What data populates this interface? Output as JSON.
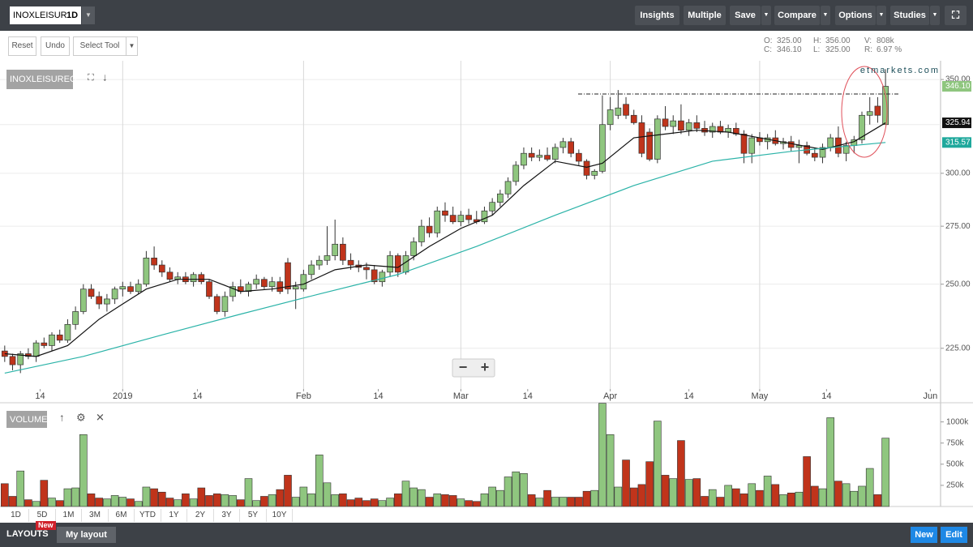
{
  "toolbar": {
    "symbol": "INOXLEISURE",
    "interval": "1D",
    "buttons": [
      "Insights",
      "Multiple",
      "Save",
      "Compare",
      "Options",
      "Studies"
    ]
  },
  "tools": [
    "Reset",
    "Undo",
    "Select Tool"
  ],
  "quote": [
    [
      "O:",
      "325.00"
    ],
    [
      "H:",
      "356.00"
    ],
    [
      "V:",
      "808k"
    ],
    [
      "C:",
      "346.10"
    ],
    [
      "L:",
      "325.00"
    ],
    [
      "R:",
      "6.97 %"
    ]
  ],
  "watermark": "etmarkets.com",
  "chart_data": {
    "type": "candlestick",
    "legend": "INOXLEISUREQ",
    "log": true,
    "grid": true,
    "up_color": "#8fc67f",
    "down_color": "#c0341b",
    "xlim": [
      -0.6,
      119
    ],
    "xticks": [
      {
        "value": 4.5,
        "label": "14"
      },
      {
        "value": 15,
        "label": "2019"
      },
      {
        "value": 24.5,
        "label": "14"
      },
      {
        "value": 38,
        "label": "Feb"
      },
      {
        "value": 47.5,
        "label": "14"
      },
      {
        "value": 58,
        "label": "Mar"
      },
      {
        "value": 66.5,
        "label": "14"
      },
      {
        "value": 77,
        "label": "Apr"
      },
      {
        "value": 87,
        "label": "14"
      },
      {
        "value": 96,
        "label": "May"
      },
      {
        "value": 104.5,
        "label": "14"
      },
      {
        "value": 117.7,
        "label": "Jun"
      }
    ],
    "xgrid": [
      15,
      38,
      58,
      77,
      96
    ],
    "ylim": [
      211,
      359.5
    ],
    "yticks": [
      {
        "value": 225,
        "label": "225.00"
      },
      {
        "value": 250,
        "label": "250.00"
      },
      {
        "value": 275,
        "label": "275.00"
      },
      {
        "value": 300,
        "label": "300.00"
      },
      {
        "value": 350,
        "label": "350.00"
      }
    ],
    "ygrid": [
      225,
      250,
      275,
      300,
      325,
      350
    ],
    "open": [
      224,
      222,
      219,
      223,
      222,
      227,
      226,
      230,
      228,
      234,
      239,
      248,
      245,
      242,
      244,
      248,
      249,
      247,
      250,
      261,
      258,
      255,
      252,
      253,
      251,
      254,
      251,
      245,
      239,
      245,
      249,
      247,
      250,
      252,
      249,
      251,
      259,
      248,
      248,
      254,
      258,
      260,
      262,
      267,
      260,
      258,
      257,
      256,
      251,
      255,
      262,
      255,
      262,
      268,
      275,
      272,
      282,
      280,
      277,
      280,
      278,
      277,
      282,
      286,
      290,
      296,
      304,
      310,
      308,
      309,
      307,
      313,
      316,
      310,
      306,
      299,
      301,
      325,
      330,
      336,
      330,
      326,
      321,
      307,
      328,
      324,
      327,
      322,
      326,
      323,
      321,
      324,
      321,
      323,
      320,
      310,
      318,
      316,
      318,
      315,
      316,
      313,
      314,
      310,
      308,
      313,
      318,
      310,
      314,
      317,
      330,
      335,
      325
    ],
    "high": [
      226,
      223,
      224,
      225,
      228,
      229,
      231,
      232,
      236,
      241,
      250,
      250,
      247,
      246,
      249,
      251,
      251,
      252,
      264,
      266,
      260,
      257,
      255,
      255,
      255,
      255,
      252,
      246,
      247,
      251,
      252,
      251,
      254,
      253,
      253,
      253,
      261,
      251,
      256,
      260,
      262,
      275,
      278,
      270,
      263,
      260,
      259,
      258,
      256,
      264,
      263,
      264,
      270,
      278,
      279,
      284,
      286,
      284,
      282,
      283,
      282,
      284,
      288,
      292,
      298,
      306,
      313,
      313,
      312,
      313,
      315,
      318,
      318,
      312,
      307,
      302,
      341,
      340,
      344,
      340,
      333,
      330,
      323,
      330,
      335,
      330,
      336,
      328,
      330,
      327,
      326,
      327,
      325,
      326,
      322,
      320,
      321,
      320,
      322,
      318,
      319,
      317,
      316,
      313,
      315,
      320,
      324,
      316,
      319,
      332,
      340,
      340,
      356
    ],
    "low": [
      220,
      217,
      216,
      221,
      220,
      225,
      224,
      227,
      227,
      232,
      238,
      244,
      240,
      239,
      242,
      245,
      246,
      246,
      249,
      256,
      253,
      251,
      250,
      250,
      249,
      250,
      244,
      238,
      237,
      243,
      246,
      245,
      248,
      248,
      247,
      246,
      246,
      240,
      247,
      252,
      256,
      258,
      260,
      258,
      256,
      255,
      252,
      250,
      249,
      253,
      253,
      254,
      260,
      266,
      270,
      270,
      277,
      276,
      275,
      276,
      276,
      276,
      280,
      284,
      288,
      294,
      302,
      306,
      306,
      306,
      305,
      310,
      308,
      304,
      297,
      297,
      300,
      322,
      328,
      328,
      325,
      308,
      306,
      305,
      322,
      320,
      320,
      319,
      321,
      319,
      318,
      320,
      318,
      319,
      305,
      305,
      314,
      312,
      314,
      312,
      311,
      305,
      309,
      306,
      305,
      311,
      308,
      306,
      310,
      315,
      325,
      326,
      325
    ],
    "close": [
      222,
      219,
      223,
      222,
      227,
      226,
      230,
      228,
      234,
      239,
      248,
      245,
      242,
      244,
      248,
      249,
      247,
      250,
      261,
      258,
      255,
      252,
      253,
      251,
      254,
      251,
      245,
      239,
      245,
      249,
      247,
      250,
      252,
      249,
      251,
      247,
      248,
      249,
      254,
      258,
      260,
      262,
      267,
      260,
      258,
      257,
      256,
      251,
      255,
      262,
      255,
      262,
      268,
      275,
      272,
      282,
      280,
      277,
      280,
      278,
      277,
      282,
      286,
      290,
      296,
      304,
      310,
      308,
      309,
      307,
      313,
      316,
      310,
      306,
      299,
      301,
      325,
      333,
      334,
      330,
      326,
      310,
      307,
      328,
      324,
      327,
      322,
      326,
      323,
      321,
      324,
      321,
      323,
      320,
      310,
      318,
      316,
      318,
      315,
      316,
      313,
      314,
      310,
      308,
      313,
      318,
      310,
      314,
      317,
      330,
      332,
      330,
      346.1
    ],
    "series": [
      {
        "color": "#111111",
        "x": [
          0,
          4,
          8,
          12,
          15,
          18,
          22,
          26,
          30,
          34,
          38,
          42,
          46,
          50,
          54,
          58,
          62,
          66,
          70,
          74,
          76,
          80,
          84,
          88,
          92,
          96,
          100,
          104,
          108,
          112
        ],
        "values": [
          223,
          222,
          226,
          236,
          242,
          248,
          252,
          252,
          247,
          248,
          250,
          256,
          258,
          257,
          266,
          274,
          280,
          294,
          306,
          303,
          305,
          318,
          320,
          322,
          321,
          318,
          315,
          312,
          316,
          325.94
        ]
      },
      {
        "color": "#2bb3a8",
        "x": [
          0,
          10,
          20,
          30,
          40,
          50,
          60,
          70,
          80,
          90,
          100,
          112
        ],
        "values": [
          216,
          222,
          230,
          238,
          246,
          254,
          266,
          280,
          294,
          306,
          311,
          315.57
        ]
      }
    ],
    "price_badges": [
      {
        "value": 346.1,
        "label": "346.10",
        "color": "#8fc67f",
        "text": "#fff"
      },
      {
        "value": 325.94,
        "label": "325.94",
        "color": "#111",
        "text": "#fff"
      },
      {
        "value": 315.57,
        "label": "315.57",
        "color": "#1fa89c",
        "text": "#fff"
      }
    ],
    "volume": {
      "title": "VOLUME",
      "ylim": [
        0,
        1150000
      ],
      "yticks": [
        {
          "value": 250000,
          "label": "250k"
        },
        {
          "value": 500000,
          "label": "500k"
        },
        {
          "value": 750000,
          "label": "750k"
        },
        {
          "value": 1000000,
          "label": "1000k"
        }
      ],
      "values": [
        270000,
        120000,
        420000,
        80000,
        60000,
        310000,
        100000,
        70000,
        210000,
        220000,
        850000,
        150000,
        100000,
        90000,
        130000,
        110000,
        90000,
        60000,
        230000,
        210000,
        170000,
        100000,
        80000,
        150000,
        90000,
        220000,
        130000,
        150000,
        140000,
        130000,
        80000,
        330000,
        70000,
        120000,
        140000,
        200000,
        370000,
        110000,
        230000,
        150000,
        610000,
        280000,
        140000,
        150000,
        80000,
        100000,
        70000,
        90000,
        70000,
        100000,
        150000,
        300000,
        220000,
        200000,
        110000,
        150000,
        140000,
        130000,
        90000,
        70000,
        60000,
        150000,
        230000,
        190000,
        350000,
        410000,
        390000,
        140000,
        100000,
        190000,
        110000,
        110000,
        110000,
        110000,
        180000,
        190000,
        1220000,
        850000,
        230000,
        550000,
        220000,
        260000,
        530000,
        1010000,
        370000,
        330000,
        780000,
        320000,
        330000,
        120000,
        200000,
        110000,
        250000,
        210000,
        150000,
        270000,
        190000,
        360000,
        260000,
        140000,
        160000,
        170000,
        590000,
        240000,
        210000,
        1050000,
        300000,
        270000,
        180000,
        240000,
        450000,
        140000,
        808000
      ]
    }
  },
  "ranges": [
    "1D",
    "5D",
    "1M",
    "3M",
    "6M",
    "YTD",
    "1Y",
    "2Y",
    "3Y",
    "5Y",
    "10Y"
  ],
  "footer": {
    "layouts": "LAYOUTS",
    "badge": "New",
    "layout": "My layout",
    "buttons": [
      "New",
      "Edit"
    ]
  }
}
